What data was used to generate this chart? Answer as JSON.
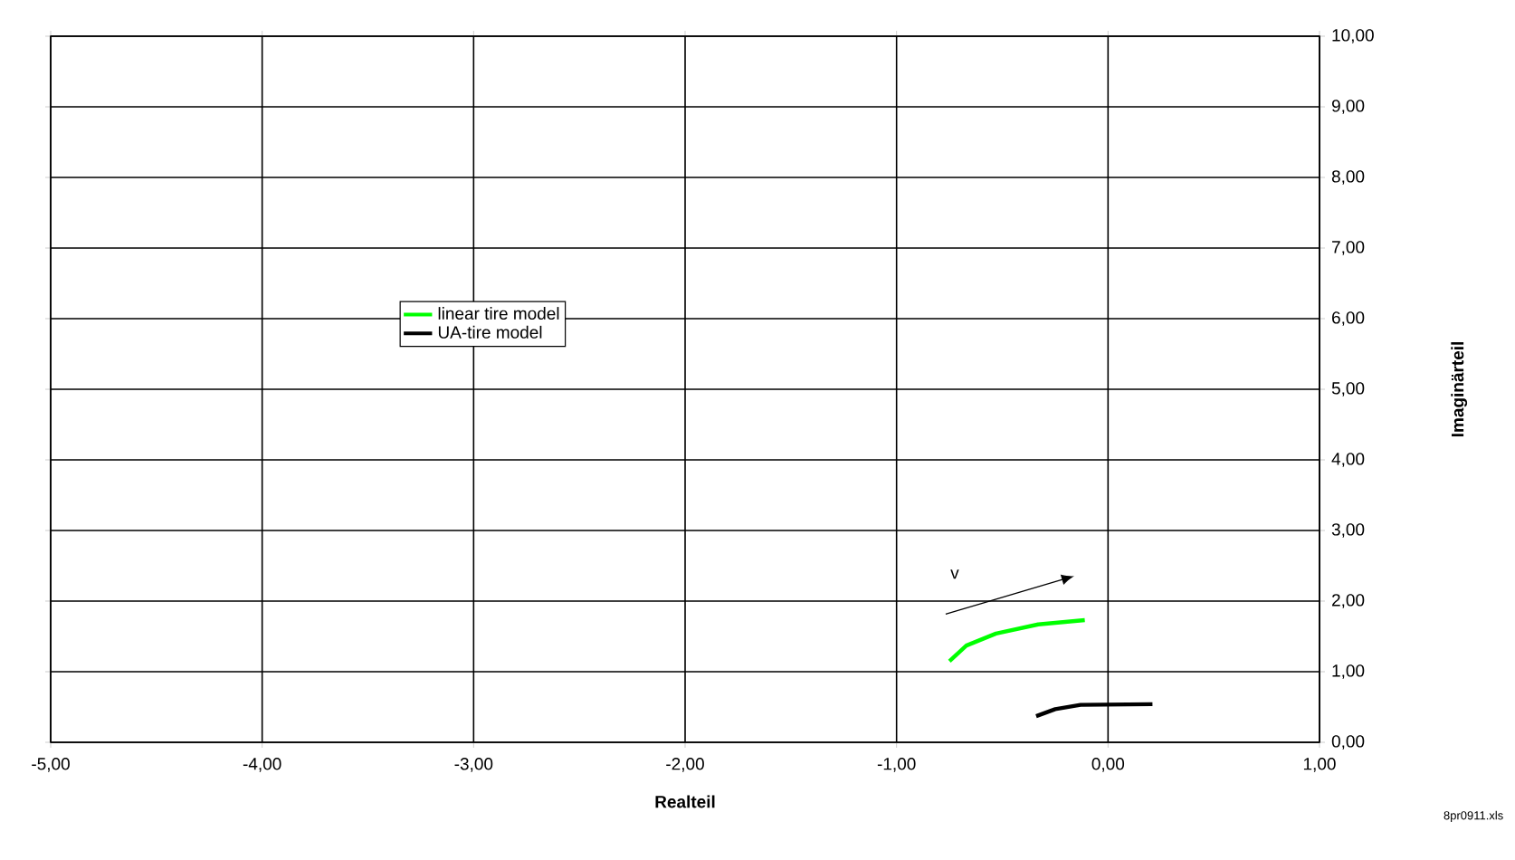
{
  "chart_data": {
    "type": "line",
    "xlabel": "Realteil",
    "ylabel": "Imaginärteil",
    "xlim": [
      -5,
      1
    ],
    "ylim": [
      0,
      10
    ],
    "xticks": [
      {
        "value": -5,
        "label": "-5,00"
      },
      {
        "value": -4,
        "label": "-4,00"
      },
      {
        "value": -3,
        "label": "-3,00"
      },
      {
        "value": -2,
        "label": "-2,00"
      },
      {
        "value": -1,
        "label": "-1,00"
      },
      {
        "value": 0,
        "label": "0,00"
      },
      {
        "value": 1,
        "label": "1,00"
      }
    ],
    "yticks": [
      {
        "value": 0,
        "label": "0,00"
      },
      {
        "value": 1,
        "label": "1,00"
      },
      {
        "value": 2,
        "label": "2,00"
      },
      {
        "value": 3,
        "label": "3,00"
      },
      {
        "value": 4,
        "label": "4,00"
      },
      {
        "value": 5,
        "label": "5,00"
      },
      {
        "value": 6,
        "label": "6,00"
      },
      {
        "value": 7,
        "label": "7,00"
      },
      {
        "value": 8,
        "label": "8,00"
      },
      {
        "value": 9,
        "label": "9,00"
      },
      {
        "value": 10,
        "label": "10,00"
      }
    ],
    "series": [
      {
        "name": "linear tire model",
        "color": "#00ff00",
        "x": [
          -0.75,
          -0.67,
          -0.53,
          -0.33,
          -0.11
        ],
        "values": [
          1.15,
          1.37,
          1.54,
          1.67,
          1.73
        ]
      },
      {
        "name": "UA-tire model",
        "color": "#000000",
        "x": [
          -0.34,
          -0.25,
          -0.13,
          0.21
        ],
        "values": [
          0.37,
          0.47,
          0.53,
          0.54
        ]
      }
    ],
    "annotations": [
      "v",
      "8pr0911.xls"
    ],
    "grid": true,
    "legend": "center",
    "marker": "none",
    "line_style": "solid"
  }
}
